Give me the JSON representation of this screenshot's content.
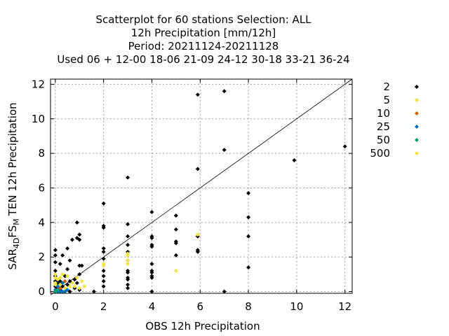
{
  "chart_data": {
    "type": "scatter",
    "title_lines": [
      "Scatterplot for   60 stations Selection: ALL",
      "12h Precipitation [mm/12h]",
      "Period: 20211124-20211128",
      "Used  06 + 12-00 18-06 21-09 24-12 30-18 33-21 36-24"
    ],
    "xlabel": "OBS 12h Precipitation",
    "ylabel": {
      "base": "SAR",
      "sub1": "4D",
      "mid": "FS",
      "sub2": "M",
      "tail": "TEN 12h Precipitation"
    },
    "xlim": [
      -0.2,
      12.3
    ],
    "ylim": [
      -0.1,
      12.3
    ],
    "xticks": [
      "0",
      "2",
      "4",
      "6",
      "8",
      "10",
      "12"
    ],
    "yticks": [
      "0",
      "2",
      "4",
      "6",
      "8",
      "10",
      "12"
    ],
    "grid": true,
    "legend_position": "right",
    "reference_line": [
      [
        -0.2,
        -0.2
      ],
      [
        12.3,
        12.3
      ]
    ],
    "series": [
      {
        "name": "2",
        "color": "#000000",
        "points": [
          [
            0,
            0.3
          ],
          [
            0,
            0.6
          ],
          [
            0,
            0.9
          ],
          [
            0,
            1.2
          ],
          [
            0,
            1.7
          ],
          [
            0,
            2.1
          ],
          [
            0,
            2.4
          ],
          [
            0.1,
            0.2
          ],
          [
            0.1,
            0.5
          ],
          [
            0.2,
            0.1
          ],
          [
            0.2,
            0.6
          ],
          [
            0.2,
            1.6
          ],
          [
            0.3,
            0.3
          ],
          [
            0.3,
            2.1
          ],
          [
            0.4,
            0.9
          ],
          [
            0.5,
            0.4
          ],
          [
            0.5,
            1.3
          ],
          [
            0.5,
            2.5
          ],
          [
            0.6,
            0
          ],
          [
            0.6,
            0.6
          ],
          [
            0.6,
            1.8
          ],
          [
            0.7,
            3.0
          ],
          [
            0.8,
            0.2
          ],
          [
            0.8,
            0.7
          ],
          [
            0.9,
            0.5
          ],
          [
            0.9,
            3.1
          ],
          [
            0.9,
            4.0
          ],
          [
            1.0,
            0.1
          ],
          [
            1.0,
            1.0
          ],
          [
            1.0,
            1.5
          ],
          [
            1.0,
            3.0
          ],
          [
            1.0,
            3.3
          ],
          [
            1.1,
            1.5
          ],
          [
            1.6,
            0
          ],
          [
            2,
            0.3
          ],
          [
            2,
            0.6
          ],
          [
            2,
            0.9
          ],
          [
            2,
            1.2
          ],
          [
            2,
            1.9
          ],
          [
            2,
            2.3
          ],
          [
            2,
            2.5
          ],
          [
            2,
            3.7
          ],
          [
            2,
            3.8
          ],
          [
            2,
            5.1
          ],
          [
            3,
            0.2
          ],
          [
            3,
            0.4
          ],
          [
            3,
            0.7
          ],
          [
            3,
            0.8
          ],
          [
            3,
            1.1
          ],
          [
            3,
            1.2
          ],
          [
            3,
            1.8
          ],
          [
            3,
            2.3
          ],
          [
            3,
            2.7
          ],
          [
            3,
            3.2
          ],
          [
            3,
            3.9
          ],
          [
            3,
            6.6
          ],
          [
            4,
            0
          ],
          [
            4,
            0.8
          ],
          [
            4,
            0.9
          ],
          [
            4,
            1.1
          ],
          [
            4,
            1.2
          ],
          [
            4,
            1.6
          ],
          [
            4,
            2.6
          ],
          [
            4,
            2.7
          ],
          [
            4,
            3.1
          ],
          [
            4,
            3.2
          ],
          [
            4,
            4.6
          ],
          [
            5,
            2.1
          ],
          [
            5,
            2.8
          ],
          [
            5,
            2.9
          ],
          [
            5,
            3.6
          ],
          [
            5,
            4.4
          ],
          [
            5.9,
            2.3
          ],
          [
            5.9,
            2.4
          ],
          [
            5.9,
            3.2
          ],
          [
            5.9,
            7.1
          ],
          [
            5.9,
            11.4
          ],
          [
            7,
            0
          ],
          [
            7,
            8.2
          ],
          [
            7,
            11.6
          ],
          [
            8,
            1.4
          ],
          [
            8,
            3.2
          ],
          [
            8,
            4.3
          ],
          [
            8,
            5.7
          ],
          [
            9.9,
            7.6
          ],
          [
            12,
            8.4
          ]
        ]
      },
      {
        "name": "5",
        "color": "#F0E442",
        "points": [
          [
            0,
            0.5
          ],
          [
            0,
            0.8
          ],
          [
            0,
            1.0
          ],
          [
            0.1,
            0.7
          ],
          [
            0.2,
            0.4
          ],
          [
            0.3,
            1.0
          ],
          [
            0.4,
            0.2
          ],
          [
            0.6,
            0.3
          ],
          [
            0.8,
            0.3
          ],
          [
            1.0,
            0.2
          ],
          [
            1.1,
            0.6
          ],
          [
            2,
            1.5
          ],
          [
            2,
            1.6
          ],
          [
            3,
            1.6
          ],
          [
            3,
            1.8
          ],
          [
            3,
            2.1
          ],
          [
            3,
            2.2
          ],
          [
            5,
            1.2
          ],
          [
            5.9,
            3.3
          ]
        ]
      },
      {
        "name": "10",
        "color": "#D55E00",
        "points": [
          [
            0.2,
            0.2
          ],
          [
            0.4,
            0.6
          ]
        ]
      },
      {
        "name": "25",
        "color": "#0072B2",
        "points": [
          [
            0,
            0.1
          ],
          [
            0.1,
            0
          ],
          [
            0.2,
            0
          ],
          [
            0.3,
            0
          ],
          [
            0.4,
            0
          ],
          [
            0.5,
            0.1
          ],
          [
            0.3,
            0.5
          ],
          [
            0.1,
            0.3
          ]
        ]
      },
      {
        "name": "50",
        "color": "#009E73",
        "points": [
          [
            0,
            0
          ],
          [
            0.1,
            0.1
          ]
        ]
      },
      {
        "name": "500",
        "color": "#F0E442",
        "points": [
          [
            0,
            0.4
          ],
          [
            0.2,
            0.8
          ],
          [
            0.5,
            0.9
          ],
          [
            0.7,
            0.5
          ],
          [
            0.9,
            0.8
          ],
          [
            1.2,
            0.3
          ]
        ]
      }
    ]
  }
}
